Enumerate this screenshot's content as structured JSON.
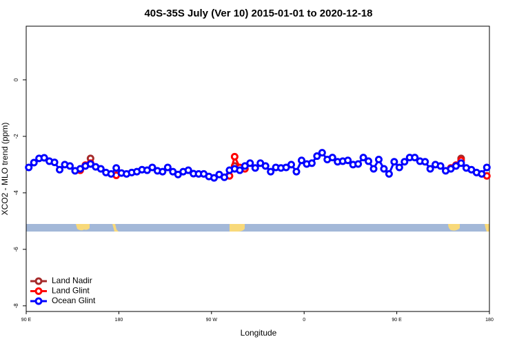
{
  "chart_data": {
    "type": "line",
    "title": "40S-35S July (Ver 10)   2015-01-01 to 2020-12-18",
    "xlabel": "Longitude",
    "ylabel": "XCO2 - MLO trend (ppm)",
    "xlim": [
      90,
      540
    ],
    "ylim": [
      -8.2,
      1.9
    ],
    "xticks": [
      {
        "value": 90,
        "label": "90 E"
      },
      {
        "value": 180,
        "label": "180"
      },
      {
        "value": 270,
        "label": "90 W"
      },
      {
        "value": 360,
        "label": "0"
      },
      {
        "value": 450,
        "label": "90 E"
      },
      {
        "value": 540,
        "label": "180"
      }
    ],
    "yticks": [
      0,
      -2,
      -4,
      -6,
      -8
    ],
    "legend": "bottom-left",
    "series": [
      {
        "name": "Land Nadir",
        "color": "#a52a2a",
        "x": [
          152.5,
          null,
          292.5,
          null,
          512.5
        ],
        "values": [
          -2.78,
          null,
          -3.05,
          null,
          -2.78
        ]
      },
      {
        "name": "Land Glint",
        "color": "#ff0000",
        "x": [
          142.5,
          147.5,
          152.5,
          null,
          177.5,
          null,
          287.5,
          292.5,
          297.5,
          302.5,
          null,
          502.5,
          507.5,
          512.5,
          null,
          537.5
        ],
        "values": [
          -3.2,
          -3.02,
          -2.95,
          null,
          -3.38,
          null,
          -3.4,
          -2.72,
          -3.1,
          -3.15,
          null,
          -3.12,
          -3.02,
          -2.85,
          null,
          -3.4
        ]
      },
      {
        "name": "Ocean Glint",
        "color": "#0000ff",
        "x": [
          92.5,
          97.5,
          102.5,
          107.5,
          112.5,
          117.5,
          122.5,
          127.5,
          132.5,
          137.5,
          142.5,
          147.5,
          152.5,
          157.5,
          162.5,
          167.5,
          172.5,
          177.5,
          182.5,
          187.5,
          192.5,
          197.5,
          202.5,
          207.5,
          212.5,
          217.5,
          222.5,
          227.5,
          232.5,
          237.5,
          242.5,
          247.5,
          252.5,
          257.5,
          262.5,
          267.5,
          272.5,
          277.5,
          282.5,
          287.5,
          292.5,
          297.5,
          302.5,
          307.5,
          312.5,
          317.5,
          322.5,
          327.5,
          332.5,
          337.5,
          342.5,
          347.5,
          352.5,
          357.5,
          362.5,
          367.5,
          372.5,
          377.5,
          382.5,
          387.5,
          392.5,
          397.5,
          402.5,
          407.5,
          412.5,
          417.5,
          422.5,
          427.5,
          432.5,
          437.5,
          442.5,
          447.5,
          452.5,
          457.5,
          462.5,
          467.5,
          472.5,
          477.5,
          482.5,
          487.5,
          492.5,
          497.5,
          502.5,
          507.5,
          512.5,
          517.5,
          522.5,
          527.5,
          532.5,
          537.5
        ],
        "values": [
          -3.1,
          -2.93,
          -2.78,
          -2.76,
          -2.88,
          -2.92,
          -3.18,
          -3.0,
          -3.05,
          -3.22,
          -3.15,
          -3.05,
          -2.98,
          -3.08,
          -3.15,
          -3.28,
          -3.33,
          -3.12,
          -3.3,
          -3.33,
          -3.28,
          -3.25,
          -3.18,
          -3.2,
          -3.1,
          -3.22,
          -3.25,
          -3.1,
          -3.25,
          -3.35,
          -3.25,
          -3.2,
          -3.32,
          -3.33,
          -3.33,
          -3.42,
          -3.47,
          -3.35,
          -3.45,
          -3.2,
          -3.15,
          -3.2,
          -3.05,
          -2.95,
          -3.12,
          -2.95,
          -3.05,
          -3.25,
          -3.1,
          -3.12,
          -3.1,
          -3.0,
          -3.25,
          -2.85,
          -2.98,
          -2.95,
          -2.7,
          -2.58,
          -2.82,
          -2.75,
          -2.9,
          -2.88,
          -2.85,
          -3.0,
          -2.98,
          -2.75,
          -2.88,
          -3.15,
          -2.82,
          -3.15,
          -3.33,
          -2.9,
          -3.1,
          -2.9,
          -2.75,
          -2.75,
          -2.88,
          -2.9,
          -3.15,
          -3.0,
          -3.05,
          -3.22,
          -3.15,
          -3.05,
          -2.95,
          -3.12,
          -3.18,
          -3.28,
          -3.33,
          -3.1
        ]
      }
    ]
  }
}
